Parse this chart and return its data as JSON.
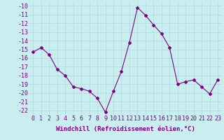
{
  "x": [
    0,
    1,
    2,
    3,
    4,
    5,
    6,
    7,
    8,
    9,
    10,
    11,
    12,
    13,
    14,
    15,
    16,
    17,
    18,
    19,
    20,
    21,
    22,
    23
  ],
  "y": [
    -15.3,
    -14.8,
    -15.6,
    -17.3,
    -18.0,
    -19.3,
    -19.5,
    -19.8,
    -20.6,
    -22.2,
    -19.8,
    -17.5,
    -14.2,
    -10.2,
    -11.1,
    -12.2,
    -13.2,
    -14.8,
    -19.0,
    -18.7,
    -18.5,
    -19.3,
    -20.1,
    -18.5
  ],
  "line_color": "#800080",
  "marker": "D",
  "marker_size": 2,
  "bg_color": "#c8eef0",
  "grid_color": "#b0d8dc",
  "xlabel": "Windchill (Refroidissement éolien,°C)",
  "xlabel_fontsize": 6.5,
  "tick_fontsize": 6.0,
  "ylim": [
    -22.5,
    -9.5
  ],
  "xlim": [
    -0.5,
    23.5
  ],
  "yticks": [
    -10,
    -11,
    -12,
    -13,
    -14,
    -15,
    -16,
    -17,
    -18,
    -19,
    -20,
    -21,
    -22
  ],
  "xticks": [
    0,
    1,
    2,
    3,
    4,
    5,
    6,
    7,
    8,
    9,
    10,
    11,
    12,
    13,
    14,
    15,
    16,
    17,
    18,
    19,
    20,
    21,
    22,
    23
  ]
}
